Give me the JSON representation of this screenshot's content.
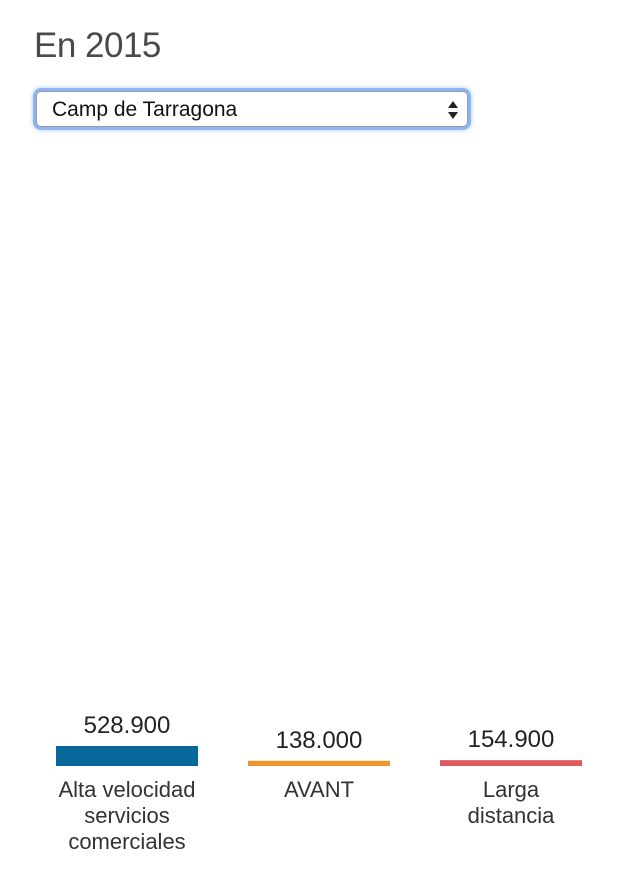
{
  "heading": "En 2015",
  "station_select": {
    "selected": "Camp de Tarragona"
  },
  "colors": {
    "alta_velocidad": "#08679a",
    "avant": "#f0952e",
    "larga_distancia": "#e05c5c"
  },
  "chart_data": {
    "type": "bar",
    "categories": [
      "Alta velocidad servicios comerciales",
      "AVANT",
      "Larga distancia"
    ],
    "values": [
      528900,
      138000,
      154900
    ],
    "value_labels": [
      "528.900",
      "138.000",
      "154.900"
    ],
    "title": "",
    "xlabel": "",
    "ylabel": "",
    "grid": false,
    "legend": "none"
  }
}
